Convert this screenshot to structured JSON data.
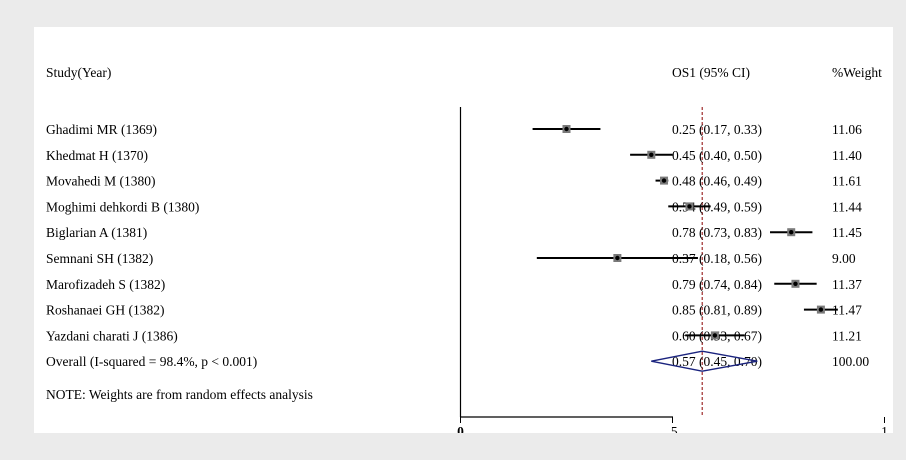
{
  "header": {
    "study_label": "Study(Year)",
    "estimate_label": "OS1 (95% CI)",
    "weight_label": "%Weight"
  },
  "chart_data": {
    "type": "forest",
    "studies": [
      {
        "label": "Ghadimi MR (1369)",
        "es": 0.25,
        "lo": 0.17,
        "hi": 0.33,
        "ci_text": "0.25 (0.17, 0.33)",
        "weight": "11.06"
      },
      {
        "label": "Khedmat H (1370)",
        "es": 0.45,
        "lo": 0.4,
        "hi": 0.5,
        "ci_text": "0.45 (0.40, 0.50)",
        "weight": "11.40"
      },
      {
        "label": "Movahedi M (1380)",
        "es": 0.48,
        "lo": 0.46,
        "hi": 0.49,
        "ci_text": "0.48 (0.46, 0.49)",
        "weight": "11.61"
      },
      {
        "label": "Moghimi dehkordi B (1380)",
        "es": 0.54,
        "lo": 0.49,
        "hi": 0.59,
        "ci_text": "0.54 (0.49, 0.59)",
        "weight": "11.44"
      },
      {
        "label": "Biglarian A (1381)",
        "es": 0.78,
        "lo": 0.73,
        "hi": 0.83,
        "ci_text": "0.78 (0.73, 0.83)",
        "weight": "11.45"
      },
      {
        "label": "Semnani SH (1382)",
        "es": 0.37,
        "lo": 0.18,
        "hi": 0.56,
        "ci_text": "0.37 (0.18, 0.56)",
        "weight": "9.00"
      },
      {
        "label": "Marofizadeh S (1382)",
        "es": 0.79,
        "lo": 0.74,
        "hi": 0.84,
        "ci_text": "0.79 (0.74, 0.84)",
        "weight": "11.37"
      },
      {
        "label": "Roshanaei GH (1382)",
        "es": 0.85,
        "lo": 0.81,
        "hi": 0.89,
        "ci_text": "0.85 (0.81, 0.89)",
        "weight": "11.47"
      },
      {
        "label": "Yazdani charati J (1386)",
        "es": 0.6,
        "lo": 0.53,
        "hi": 0.67,
        "ci_text": "0.60 (0.53, 0.67)",
        "weight": "11.21"
      }
    ],
    "overall": {
      "label": "Overall  (I-squared = 98.4%, p < 0.001)",
      "es": 0.57,
      "lo": 0.45,
      "hi": 0.7,
      "ci_text": "0.57 (0.45, 0.70)",
      "weight": "100.00"
    },
    "note": "NOTE: Weights are from random effects analysis",
    "x_ticks": [
      {
        "value": 0,
        "label": "0"
      },
      {
        "value": 0.5,
        "label": ".5"
      },
      {
        "value": 1,
        "label": "1"
      }
    ],
    "null_line": 0,
    "pooled_line": 0.57,
    "colors": {
      "diamond": "#1a237e",
      "pooled_line": "#8b0000",
      "marks": "#000000"
    }
  }
}
